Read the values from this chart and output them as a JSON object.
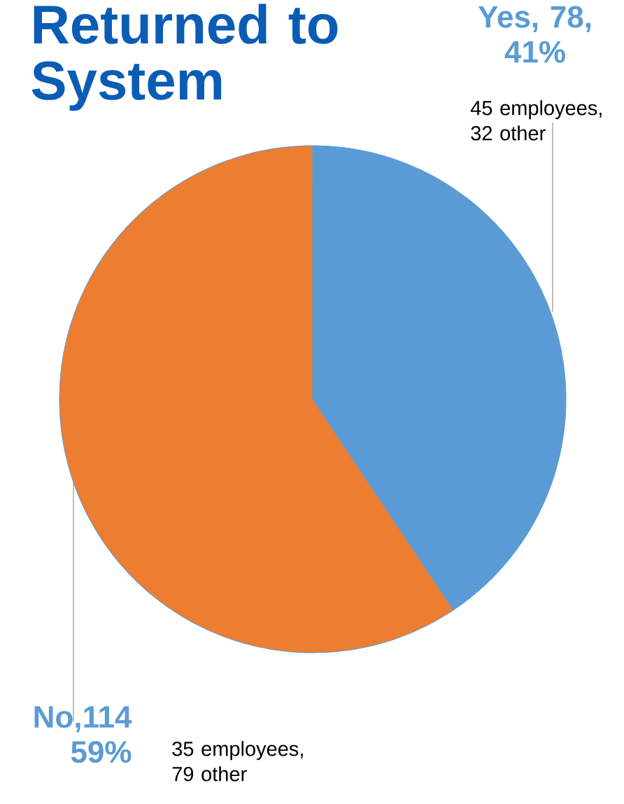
{
  "chart_data": {
    "type": "pie",
    "title": "Returned to System",
    "categories": [
      "Yes",
      "No"
    ],
    "values": [
      78,
      114
    ],
    "colors": [
      "#5b9bd5",
      "#ed7d31"
    ],
    "value_labels": [
      ", 78, 41%",
      ",114 59%"
    ],
    "annotations": [
      "45 employees, 32 other",
      "35 employees, 79 other"
    ]
  }
}
